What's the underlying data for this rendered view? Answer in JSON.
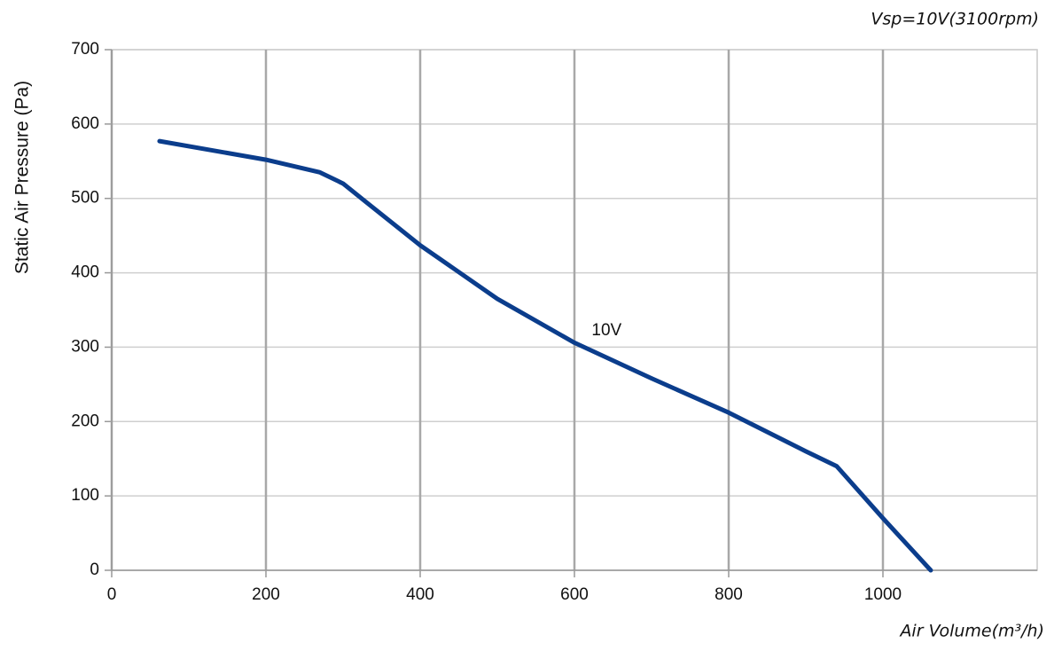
{
  "chart_data": {
    "type": "line",
    "note_top_right": "Vsp=10V(3100rpm)",
    "x_label": "Air Volume(m³/h)",
    "y_label": "Static Air Pressure  (Pa)",
    "annotation": {
      "text": "10V",
      "x": 620,
      "y": 322
    },
    "x": [
      62,
      200,
      270,
      300,
      330,
      400,
      500,
      600,
      700,
      800,
      900,
      940,
      1000,
      1062
    ],
    "series": [
      {
        "name": "10V",
        "color": "#0b3d8c",
        "values": [
          577,
          552,
          535,
          520,
          495,
          437,
          365,
          306,
          258,
          212,
          160,
          140,
          70,
          0
        ]
      }
    ],
    "xlim": [
      0,
      1200
    ],
    "xticks": [
      0,
      200,
      400,
      600,
      800,
      1000
    ],
    "ylim": [
      0,
      700
    ],
    "yticks": [
      0,
      100,
      200,
      300,
      400,
      500,
      600,
      700
    ],
    "grid": true
  }
}
